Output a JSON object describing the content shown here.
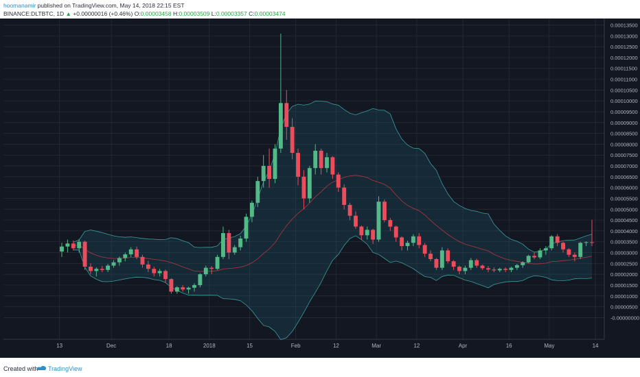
{
  "header": {
    "author": "hoomanamir",
    "published": "published on TradingView.com, May 14, 2018 22:15 EST",
    "symbol": "BINANCE:DLTBTC, 1D",
    "change": "+0.00000016 (+0.46%)",
    "o_label": "O:",
    "o_value": "0.00003458",
    "h_label": "H:",
    "h_value": "0.00003509",
    "l_label": "L:",
    "l_value": "0.00003357",
    "c_label": "C:",
    "c_value": "0.00003474"
  },
  "footer": {
    "created": "Created with",
    "brand": "TradingView"
  },
  "colors": {
    "background": "#131722",
    "grid": "#2a2e39",
    "up": "#53b987",
    "down": "#eb4d5c",
    "band_fill": "#1e5f6b",
    "band_line": "#3b9d9b",
    "basis": "#b5353f",
    "price_label": "#53b987"
  },
  "chart_data": {
    "type": "candlestick",
    "ylim": [
      -1e-06,
      1.38e-05
    ],
    "y_ticks": [
      "0.00013500",
      "0.00013000",
      "0.00012500",
      "0.00012000",
      "0.00011500",
      "0.00011000",
      "0.00010500",
      "0.00010000",
      "0.00009500",
      "0.00009000",
      "0.00008500",
      "0.00008000",
      "0.00007500",
      "0.00007000",
      "0.00006500",
      "0.00006000",
      "0.00005500",
      "0.00005000",
      "0.00004500",
      "0.00004000",
      "0.00003500",
      "0.00003000",
      "0.00002500",
      "0.00002000",
      "0.00001500",
      "0.00001000",
      "0.00000500",
      "-0.00000000"
    ],
    "x_ticks": [
      "13",
      "Dec",
      "18",
      "2018",
      "15",
      "Feb",
      "12",
      "Mar",
      "12",
      "Apr",
      "16",
      "May",
      "14"
    ],
    "last_price": "0.00003474",
    "candles": [
      [
        3.05e-06,
        3.45e-06,
        2.8e-06,
        3.28e-06
      ],
      [
        3.28e-06,
        3.6e-06,
        3e-06,
        3.42e-06
      ],
      [
        3.42e-06,
        3.56e-06,
        3.1e-06,
        3.2e-06
      ],
      [
        3.2e-06,
        3.62e-06,
        3e-06,
        3.5e-06
      ],
      [
        3.5e-06,
        3.55e-06,
        2.2e-06,
        2.35e-06
      ],
      [
        2.35e-06,
        2.5e-06,
        2e-06,
        2.15e-06
      ],
      [
        2.15e-06,
        2.32e-06,
        1.9e-06,
        2.25e-06
      ],
      [
        2.25e-06,
        2.38e-06,
        2.1e-06,
        2.2e-06
      ],
      [
        2.2e-06,
        2.48e-06,
        2.1e-06,
        2.4e-06
      ],
      [
        2.4e-06,
        2.65e-06,
        2.3e-06,
        2.55e-06
      ],
      [
        2.55e-06,
        2.82e-06,
        2.4e-06,
        2.75e-06
      ],
      [
        2.75e-06,
        3e-06,
        2.6e-06,
        2.92e-06
      ],
      [
        2.92e-06,
        3.25e-06,
        2.8e-06,
        3.15e-06
      ],
      [
        3.15e-06,
        3.28e-06,
        2.7e-06,
        2.8e-06
      ],
      [
        2.8e-06,
        2.9e-06,
        2.3e-06,
        2.45e-06
      ],
      [
        2.45e-06,
        2.62e-06,
        2.1e-06,
        2.25e-06
      ],
      [
        2.25e-06,
        2.35e-06,
        1.9e-06,
        2.05e-06
      ],
      [
        2.05e-06,
        2.25e-06,
        1.9e-06,
        2.15e-06
      ],
      [
        2.15e-06,
        2.22e-06,
        1.6e-06,
        1.78e-06
      ],
      [
        1.78e-06,
        1.82e-06,
        1.1e-06,
        1.2e-06
      ],
      [
        1.2e-06,
        1.45e-06,
        1.1e-06,
        1.4e-06
      ],
      [
        1.4e-06,
        1.5e-06,
        1.2e-06,
        1.3e-06
      ],
      [
        1.3e-06,
        1.43e-06,
        1.1e-06,
        1.38e-06
      ],
      [
        1.38e-06,
        1.58e-06,
        1.2e-06,
        1.5e-06
      ],
      [
        1.5e-06,
        2.05e-06,
        1.4e-06,
        2e-06
      ],
      [
        2e-06,
        2.4e-06,
        1.9e-06,
        2.3e-06
      ],
      [
        2.3e-06,
        2.38e-06,
        2e-06,
        2.25e-06
      ],
      [
        2.25e-06,
        2.9e-06,
        2.2e-06,
        2.8e-06
      ],
      [
        2.8e-06,
        4.2e-06,
        2.7e-06,
        3.9e-06
      ],
      [
        3.9e-06,
        4.05e-06,
        2.7e-06,
        3e-06
      ],
      [
        3e-06,
        3.35e-06,
        2.9e-06,
        3.25e-06
      ],
      [
        3.25e-06,
        3.78e-06,
        3.1e-06,
        3.65e-06
      ],
      [
        3.65e-06,
        4.8e-06,
        3.5e-06,
        4.65e-06
      ],
      [
        4.65e-06,
        5.4e-06,
        4.4e-06,
        5.3e-06
      ],
      [
        5.3e-06,
        6.5e-06,
        5.1e-06,
        6.3e-06
      ],
      [
        6.3e-06,
        7.5e-06,
        6e-06,
        7e-06
      ],
      [
        7e-06,
        7.8e-06,
        6e-06,
        6.4e-06
      ],
      [
        6.4e-06,
        8e-06,
        6.2e-06,
        7.8e-06
      ],
      [
        7.8e-06,
        1.31e-05,
        7.6e-06,
        9.9e-06
      ],
      [
        9.9e-06,
        1.05e-05,
        8.2e-06,
        8.8e-06
      ],
      [
        8.8e-06,
        9.2e-06,
        7.3e-06,
        7.6e-06
      ],
      [
        7.6e-06,
        7.8e-06,
        6.1e-06,
        6.5e-06
      ],
      [
        6.5e-06,
        6.8e-06,
        5e-06,
        5.5e-06
      ],
      [
        5.5e-06,
        7e-06,
        5.3e-06,
        6.9e-06
      ],
      [
        6.9e-06,
        8e-06,
        6.6e-06,
        7.7e-06
      ],
      [
        7.7e-06,
        7.8e-06,
        6.6e-06,
        6.9e-06
      ],
      [
        6.9e-06,
        7.6e-06,
        6.7e-06,
        7.4e-06
      ],
      [
        7.4e-06,
        7.45e-06,
        6.4e-06,
        6.6e-06
      ],
      [
        6.6e-06,
        6.7e-06,
        5.8e-06,
        6e-06
      ],
      [
        6e-06,
        6.15e-06,
        5e-06,
        5.2e-06
      ],
      [
        5.2e-06,
        5.3e-06,
        4.5e-06,
        4.7e-06
      ],
      [
        4.7e-06,
        4.9e-06,
        4.1e-06,
        4.2e-06
      ],
      [
        4.2e-06,
        4.25e-06,
        3.6e-06,
        3.8e-06
      ],
      [
        3.8e-06,
        4.2e-06,
        3.6e-06,
        4.05e-06
      ],
      [
        4.05e-06,
        4.1e-06,
        3.4e-06,
        3.6e-06
      ],
      [
        3.6e-06,
        5.6e-06,
        3.5e-06,
        5.35e-06
      ],
      [
        5.35e-06,
        5.45e-06,
        4.4e-06,
        4.5e-06
      ],
      [
        4.5e-06,
        4.6e-06,
        4e-06,
        4.2e-06
      ],
      [
        4.2e-06,
        4.25e-06,
        3.5e-06,
        3.7e-06
      ],
      [
        3.7e-06,
        3.75e-06,
        3.1e-06,
        3.3e-06
      ],
      [
        3.3e-06,
        3.55e-06,
        3.1e-06,
        3.45e-06
      ],
      [
        3.45e-06,
        3.85e-06,
        3.3e-06,
        3.75e-06
      ],
      [
        3.75e-06,
        3.9e-06,
        3.2e-06,
        3.35e-06
      ],
      [
        3.35e-06,
        3.45e-06,
        2.8e-06,
        2.95e-06
      ],
      [
        2.95e-06,
        3.1e-06,
        2.6e-06,
        2.7e-06
      ],
      [
        2.7e-06,
        2.75e-06,
        2.2e-06,
        2.3e-06
      ],
      [
        2.3e-06,
        3.25e-06,
        2.2e-06,
        3.1e-06
      ],
      [
        3.1e-06,
        3.2e-06,
        2.5e-06,
        2.6e-06
      ],
      [
        2.6e-06,
        2.65e-06,
        2.2e-06,
        2.35e-06
      ],
      [
        2.35e-06,
        2.4e-06,
        2e-06,
        2.15e-06
      ],
      [
        2.15e-06,
        2.4e-06,
        2e-06,
        2.3e-06
      ],
      [
        2.3e-06,
        2.75e-06,
        2.2e-06,
        2.65e-06
      ],
      [
        2.65e-06,
        2.72e-06,
        2.3e-06,
        2.4e-06
      ],
      [
        2.4e-06,
        2.45e-06,
        2.2e-06,
        2.28e-06
      ],
      [
        2.28e-06,
        2.38e-06,
        2.1e-06,
        2.22e-06
      ],
      [
        2.22e-06,
        2.32e-06,
        2.1e-06,
        2.18e-06
      ],
      [
        2.18e-06,
        2.3e-06,
        2.1e-06,
        2.25e-06
      ],
      [
        2.25e-06,
        2.32e-06,
        2.1e-06,
        2.2e-06
      ],
      [
        2.2e-06,
        2.35e-06,
        2.1e-06,
        2.3e-06
      ],
      [
        2.3e-06,
        2.48e-06,
        2.2e-06,
        2.42e-06
      ],
      [
        2.42e-06,
        2.6e-06,
        2.3e-06,
        2.55e-06
      ],
      [
        2.55e-06,
        2.9e-06,
        2.5e-06,
        2.85e-06
      ],
      [
        2.85e-06,
        3e-06,
        2.7e-06,
        2.78e-06
      ],
      [
        2.78e-06,
        3.2e-06,
        2.7e-06,
        3.1e-06
      ],
      [
        3.1e-06,
        3.3e-06,
        2.9e-06,
        3.2e-06
      ],
      [
        3.2e-06,
        3.8e-06,
        3.1e-06,
        3.75e-06
      ],
      [
        3.75e-06,
        3.85e-06,
        3.3e-06,
        3.45e-06
      ],
      [
        3.45e-06,
        3.5e-06,
        3e-06,
        3.15e-06
      ],
      [
        3.15e-06,
        3.2e-06,
        2.8e-06,
        2.9e-06
      ],
      [
        2.9e-06,
        3e-06,
        2.6e-06,
        2.8e-06
      ],
      [
        2.8e-06,
        3.5e-06,
        2.7e-06,
        3.45e-06
      ],
      [
        3.45e-06,
        3.52e-06,
        3.3e-06,
        3.48e-06
      ],
      [
        3.48e-06,
        4.51e-06,
        3.3e-06,
        3.47e-06
      ]
    ]
  }
}
